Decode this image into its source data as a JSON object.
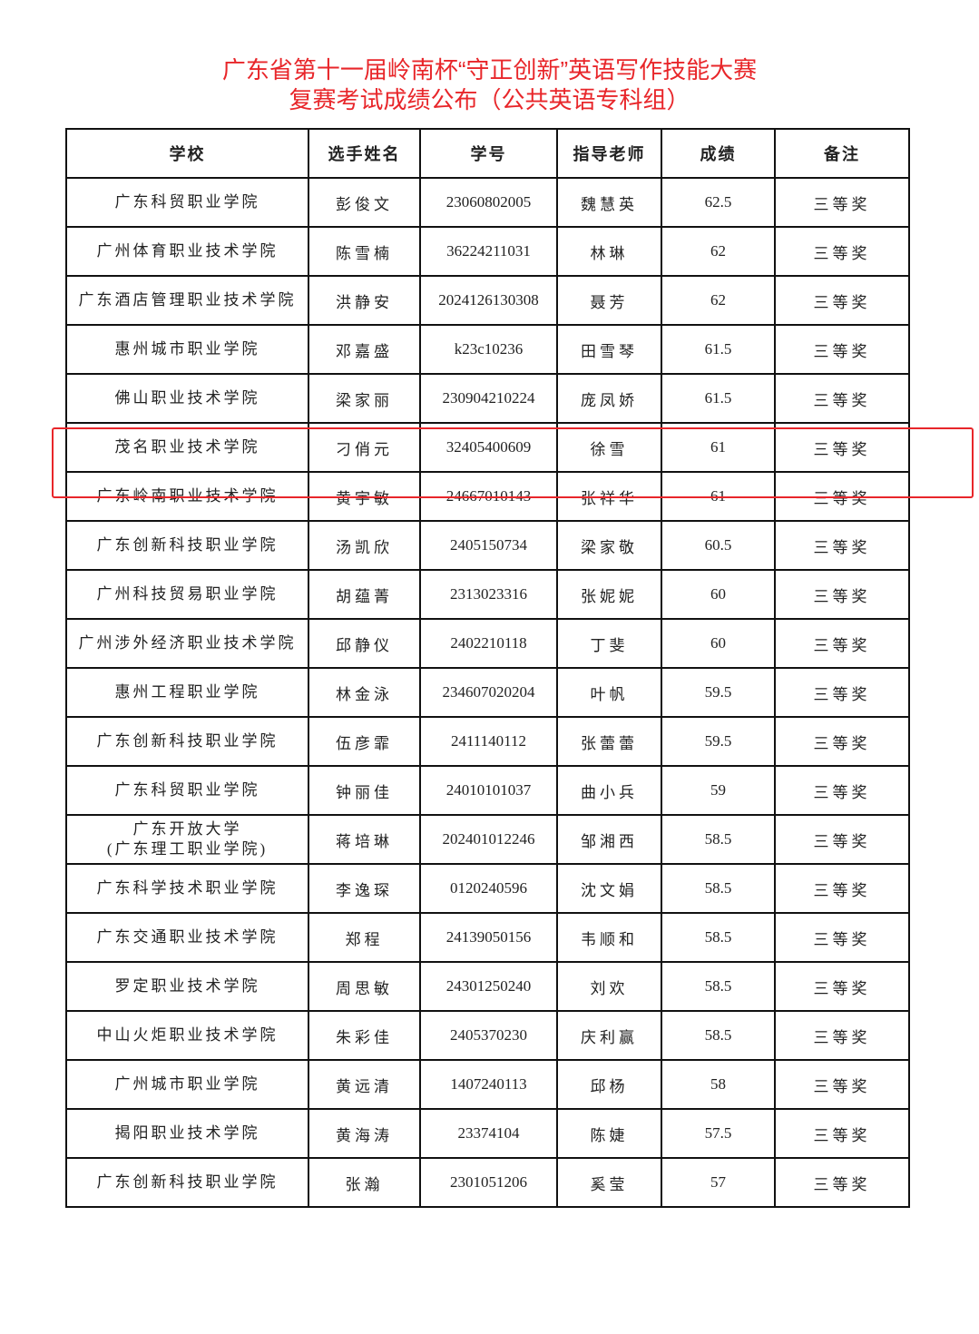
{
  "title_line1": "广东省第十一届岭南杯“守正创新”英语写作技能大赛",
  "title_line2": "复赛考试成绩公布（公共英语专科组）",
  "highlight_color": "#e8262a",
  "table": {
    "headers": [
      "学校",
      "选手姓名",
      "学号",
      "指导老师",
      "成绩",
      "备注"
    ],
    "highlighted_row": 5,
    "rows": [
      [
        "广东科贸职业学院",
        "彭俊文",
        "23060802005",
        "魏慧英",
        "62.5",
        "三等奖"
      ],
      [
        "广州体育职业技术学院",
        "陈雪楠",
        "36224211031",
        "林琳",
        "62",
        "三等奖"
      ],
      [
        "广东酒店管理职业技术学院",
        "洪静安",
        "2024126130308",
        "聂芳",
        "62",
        "三等奖"
      ],
      [
        "惠州城市职业学院",
        "邓嘉盛",
        "k23c10236",
        "田雪琴",
        "61.5",
        "三等奖"
      ],
      [
        "佛山职业技术学院",
        "梁家丽",
        "230904210224",
        "庞凤娇",
        "61.5",
        "三等奖"
      ],
      [
        "茂名职业技术学院",
        "刁俏元",
        "32405400609",
        "徐雪",
        "61",
        "三等奖"
      ],
      [
        "广东岭南职业技术学院",
        "黄宇敏",
        "24667010143",
        "张祥华",
        "61",
        "三等奖"
      ],
      [
        "广东创新科技职业学院",
        "汤凯欣",
        "2405150734",
        "梁家敬",
        "60.5",
        "三等奖"
      ],
      [
        "广州科技贸易职业学院",
        "胡蕴菁",
        "2313023316",
        "张妮妮",
        "60",
        "三等奖"
      ],
      [
        "广州涉外经济职业技术学院",
        "邱静仪",
        "2402210118",
        "丁斐",
        "60",
        "三等奖"
      ],
      [
        "惠州工程职业学院",
        "林金泳",
        "234607020204",
        "叶帆",
        "59.5",
        "三等奖"
      ],
      [
        "广东创新科技职业学院",
        "伍彦霏",
        "2411140112",
        "张蕾蕾",
        "59.5",
        "三等奖"
      ],
      [
        "广东科贸职业学院",
        "钟丽佳",
        "24010101037",
        "曲小兵",
        "59",
        "三等奖"
      ],
      [
        "广东开放大学\n(广东理工职业学院)",
        "蒋培琳",
        "202401012246",
        "邹湘西",
        "58.5",
        "三等奖"
      ],
      [
        "广东科学技术职业学院",
        "李逸琛",
        "0120240596",
        "沈文娟",
        "58.5",
        "三等奖"
      ],
      [
        "广东交通职业技术学院",
        "郑程",
        "24139050156",
        "韦顺和",
        "58.5",
        "三等奖"
      ],
      [
        "罗定职业技术学院",
        "周思敏",
        "24301250240",
        "刘欢",
        "58.5",
        "三等奖"
      ],
      [
        "中山火炬职业技术学院",
        "朱彩佳",
        "2405370230",
        "庆利赢",
        "58.5",
        "三等奖"
      ],
      [
        "广州城市职业学院",
        "黄远清",
        "1407240113",
        "邱杨",
        "58",
        "三等奖"
      ],
      [
        "揭阳职业技术学院",
        "黄海涛",
        "23374104",
        "陈婕",
        "57.5",
        "三等奖"
      ],
      [
        "广东创新科技职业学院",
        "张瀚",
        "2301051206",
        "奚莹",
        "57",
        "三等奖"
      ]
    ]
  }
}
